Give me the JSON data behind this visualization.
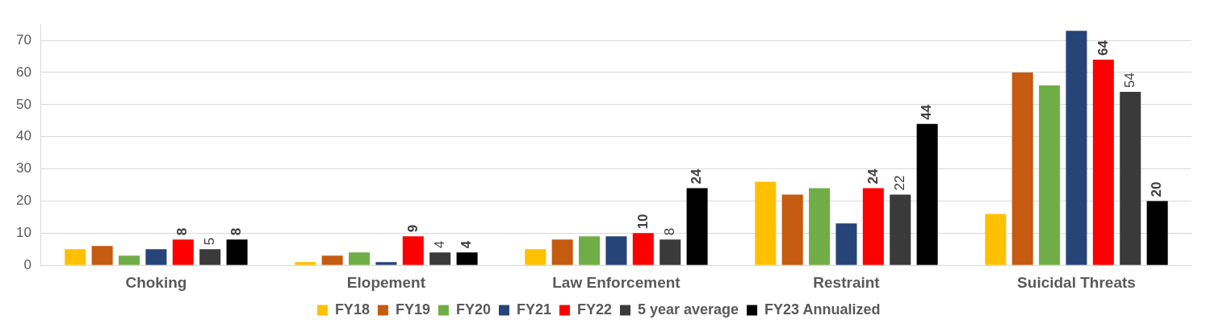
{
  "chart_data": {
    "type": "bar",
    "categories": [
      "Choking",
      "Elopement",
      "Law Enforcement",
      "Restraint",
      "Suicidal Threats"
    ],
    "series": [
      {
        "name": "FY18",
        "color": "#ffc000",
        "values": [
          5,
          1,
          5,
          26,
          16
        ]
      },
      {
        "name": "FY19",
        "color": "#c55a11",
        "values": [
          6,
          3,
          8,
          22,
          60
        ]
      },
      {
        "name": "FY20",
        "color": "#70ad47",
        "values": [
          3,
          4,
          9,
          24,
          56
        ]
      },
      {
        "name": "FY21",
        "color": "#264478",
        "values": [
          5,
          1,
          9,
          13,
          73
        ]
      },
      {
        "name": "FY22",
        "color": "#ff0000",
        "values": [
          8,
          9,
          10,
          24,
          64
        ],
        "value_labels": [
          "8",
          "9",
          "10",
          "24",
          "64"
        ]
      },
      {
        "name": "5 year average",
        "color": "#3a3a3a",
        "values": [
          5,
          4,
          8,
          22,
          54
        ],
        "value_labels": [
          "5",
          "4",
          "8",
          "22",
          "54"
        ]
      },
      {
        "name": "FY23 Annualized",
        "color": "#000000",
        "values": [
          8,
          4,
          24,
          44,
          20
        ],
        "value_labels": [
          "8",
          "4",
          "24",
          "44",
          "20"
        ]
      }
    ],
    "ylim": [
      0,
      75
    ],
    "yticks": [
      0,
      10,
      20,
      30,
      40,
      50,
      60,
      70
    ],
    "grid": "y",
    "legend": "bottom"
  }
}
